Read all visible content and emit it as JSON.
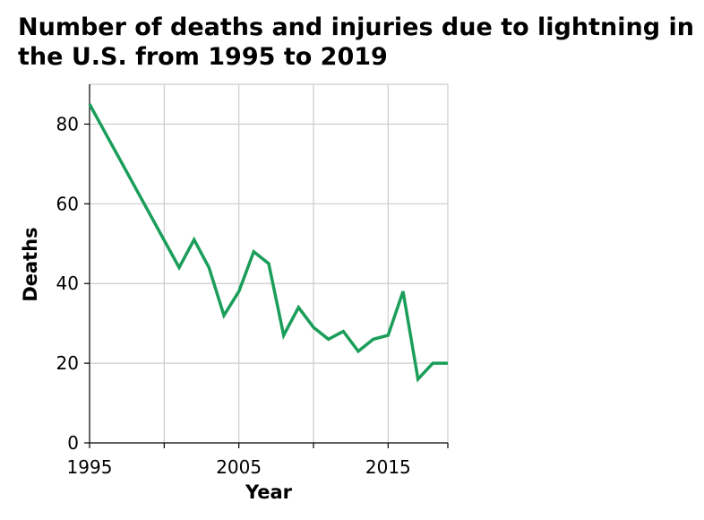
{
  "chart_data": {
    "type": "line",
    "title": "Number of deaths and injuries due to lightning in the U.S. from 1995 to 2019",
    "xlabel": "Year",
    "ylabel": "Deaths",
    "xlim": [
      1995,
      2019
    ],
    "ylim": [
      0,
      90
    ],
    "x_ticks": [
      1995,
      2005,
      2015
    ],
    "x_tick_labels": [
      "1995",
      "2005",
      "2015"
    ],
    "y_ticks": [
      0,
      20,
      40,
      60,
      80
    ],
    "y_tick_labels": [
      "0",
      "20",
      "40",
      "60",
      "80"
    ],
    "grid": true,
    "legend": "none",
    "series": [
      {
        "color": "#1a9e5a",
        "x": [
          1995,
          2001,
          2002,
          2003,
          2004,
          2005,
          2006,
          2007,
          2008,
          2009,
          2010,
          2011,
          2012,
          2013,
          2014,
          2015,
          2016,
          2017,
          2018,
          2019
        ],
        "y": [
          85,
          44,
          51,
          44,
          32,
          38,
          48,
          45,
          27,
          34,
          29,
          26,
          28,
          23,
          26,
          27,
          38,
          16,
          20,
          20
        ]
      }
    ]
  }
}
